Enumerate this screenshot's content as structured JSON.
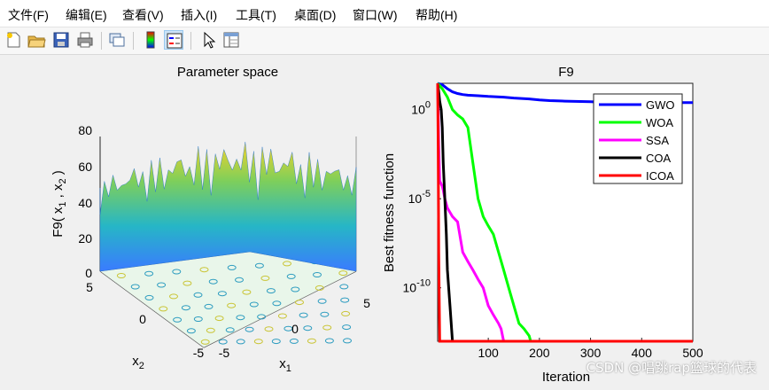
{
  "menu": [
    {
      "label": "文件(F)"
    },
    {
      "label": "编辑(E)"
    },
    {
      "label": "查看(V)"
    },
    {
      "label": "插入(I)"
    },
    {
      "label": "工具(T)"
    },
    {
      "label": "桌面(D)"
    },
    {
      "label": "窗口(W)"
    },
    {
      "label": "帮助(H)"
    }
  ],
  "toolbar_icons": [
    "new-figure-icon",
    "open-file-icon",
    "save-icon",
    "print-icon",
    "link-plot-icon",
    "colorbar-icon",
    "legend-icon",
    "pointer-icon",
    "property-inspector-icon"
  ],
  "left_plot": {
    "title": "Parameter space",
    "zlabel_main": "F9( x",
    "zlabel_s1": "1",
    "zlabel_mid": " , x",
    "zlabel_s2": "2",
    "zlabel_end": " )",
    "z_ticks": [
      "0",
      "20",
      "40",
      "60",
      "80"
    ],
    "x2_ticks": [
      "5",
      "0",
      "-5"
    ],
    "x1_ticks": [
      "-5",
      "0",
      "5"
    ],
    "x2_label": "x",
    "x2_sub": "2",
    "x1_label": "x",
    "x1_sub": "1"
  },
  "chart_data": {
    "type": "line",
    "title": "F9",
    "xlabel": "Iteration",
    "ylabel": "Best fitness function",
    "xlim": [
      1,
      500
    ],
    "y_scale": "log",
    "ylim": [
      1e-13,
      30
    ],
    "x_ticks": [
      "100",
      "200",
      "300",
      "400",
      "500"
    ],
    "y_ticks": [
      {
        "base": "10",
        "exp": "0",
        "value": 1
      },
      {
        "base": "10",
        "exp": "-5",
        "value": 1e-05
      },
      {
        "base": "10",
        "exp": "-10",
        "value": 1e-10
      }
    ],
    "legend_position": "top-right",
    "series": [
      {
        "name": "GWO",
        "color": "#0000ff",
        "x": [
          1,
          10,
          20,
          30,
          40,
          50,
          60,
          80,
          100,
          130,
          150,
          180,
          200,
          220,
          250,
          300,
          320,
          350,
          400,
          450,
          500
        ],
        "y": [
          30,
          25,
          15,
          10,
          8,
          7,
          6.5,
          6,
          5.5,
          5,
          4.5,
          4,
          3.5,
          3.2,
          3.0,
          2.8,
          2.6,
          2.5,
          2.5,
          2.5,
          2.5
        ]
      },
      {
        "name": "WOA",
        "color": "#00ff00",
        "x": [
          1,
          10,
          20,
          30,
          40,
          50,
          60,
          70,
          80,
          90,
          100,
          110,
          120,
          130,
          140,
          150,
          160,
          170,
          180,
          183,
          200,
          500
        ],
        "y": [
          30,
          15,
          5,
          1,
          0.5,
          0.3,
          0.1,
          0.001,
          1e-05,
          1e-06,
          3e-07,
          1e-07,
          1e-08,
          1e-09,
          1e-10,
          1e-11,
          1e-12,
          5e-13,
          2e-13,
          1e-13,
          1e-13,
          1e-13
        ]
      },
      {
        "name": "SSA",
        "color": "#ff00ff",
        "x": [
          1,
          2,
          3,
          5,
          10,
          12,
          15,
          20,
          30,
          40,
          50,
          60,
          70,
          80,
          90,
          100,
          110,
          120,
          125,
          130,
          500
        ],
        "y": [
          30,
          1,
          0.01,
          0.0001,
          5e-05,
          3e-05,
          1e-05,
          3e-06,
          1e-06,
          5e-07,
          1e-08,
          3e-09,
          1e-09,
          3e-10,
          1e-10,
          1e-11,
          3e-12,
          1e-12,
          5e-13,
          1e-13,
          1e-13
        ]
      },
      {
        "name": "COA",
        "color": "#000000",
        "x": [
          1,
          3,
          5,
          8,
          10,
          12,
          15,
          18,
          20,
          25,
          30,
          500
        ],
        "y": [
          30,
          10,
          3,
          1,
          0.1,
          0.001,
          1e-05,
          1e-07,
          1e-09,
          1e-11,
          1e-13,
          1e-13
        ]
      },
      {
        "name": "ICOA",
        "color": "#ff0000",
        "x": [
          1,
          2,
          3,
          5,
          500
        ],
        "y": [
          30,
          0.01,
          1e-08,
          1e-13,
          1e-13
        ]
      }
    ]
  },
  "watermark": "CSDN @唱跳rap篮球的代表"
}
